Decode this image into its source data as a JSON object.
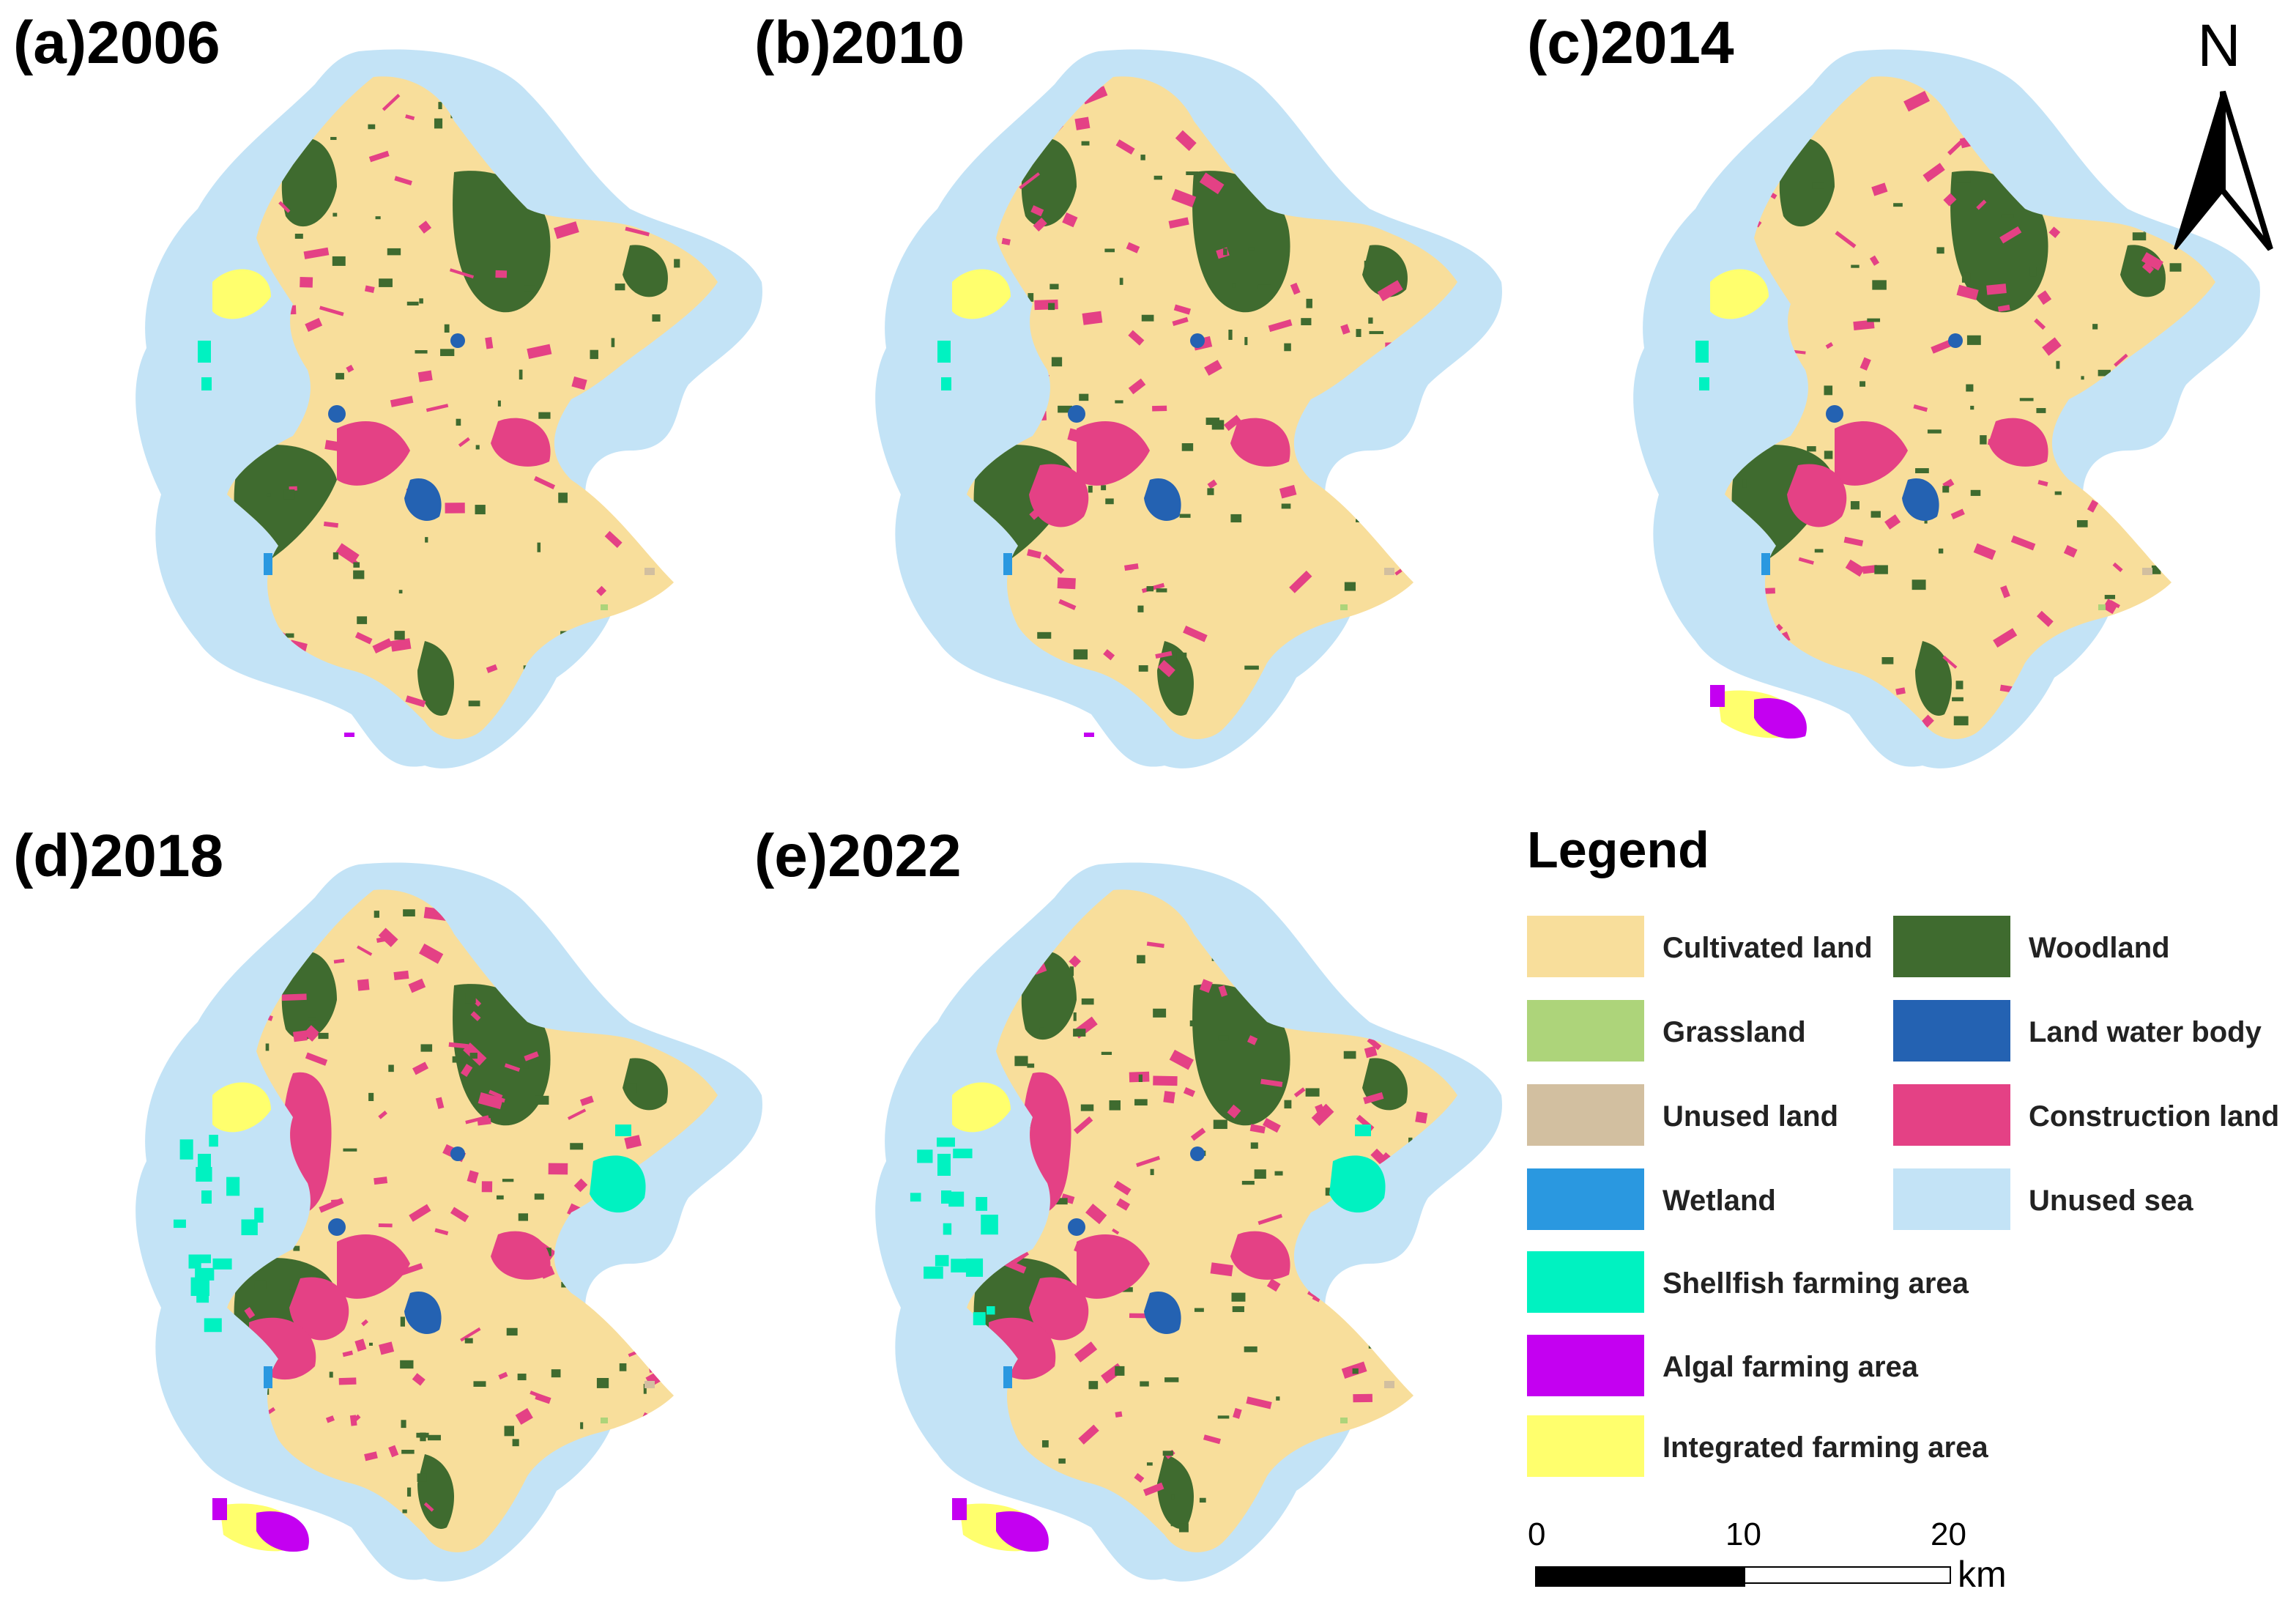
{
  "panels": [
    {
      "title": "(a)2006",
      "year": 2006,
      "shellfish": "low",
      "algal": "none",
      "integrated": "low",
      "construction": "low"
    },
    {
      "title": "(b)2010",
      "year": 2010,
      "shellfish": "low",
      "algal": "none",
      "integrated": "low",
      "construction": "medium"
    },
    {
      "title": "(c)2014",
      "year": 2014,
      "shellfish": "low",
      "algal": "medium",
      "integrated": "medium",
      "construction": "medium"
    },
    {
      "title": "(d)2018",
      "year": 2018,
      "shellfish": "high",
      "algal": "high",
      "integrated": "high",
      "construction": "high"
    },
    {
      "title": "(e)2022",
      "year": 2022,
      "shellfish": "high",
      "algal": "high",
      "integrated": "high",
      "construction": "high"
    }
  ],
  "north_label": "N",
  "legend": {
    "title": "Legend",
    "items": [
      {
        "label": "Cultivated land",
        "color": "#f8de9b"
      },
      {
        "label": "Woodland",
        "color": "#3f6b2f"
      },
      {
        "label": "Grassland",
        "color": "#add47a"
      },
      {
        "label": "Land water body",
        "color": "#2462b2"
      },
      {
        "label": "Unused land",
        "color": "#d2bfa0"
      },
      {
        "label": "Construction land",
        "color": "#e44185"
      },
      {
        "label": "Wetland",
        "color": "#2a98e0"
      },
      {
        "label": "Unused sea",
        "color": "#c3e3f6"
      },
      {
        "label": "Shellfish farming area",
        "color": "#00f2c1"
      },
      {
        "label": "Algal farming area",
        "color": "#c400f1"
      },
      {
        "label": "Integrated farming area",
        "color": "#ffff6d"
      }
    ]
  },
  "scale_bar": {
    "ticks": [
      "0",
      "10",
      "20"
    ],
    "unit": "km"
  }
}
